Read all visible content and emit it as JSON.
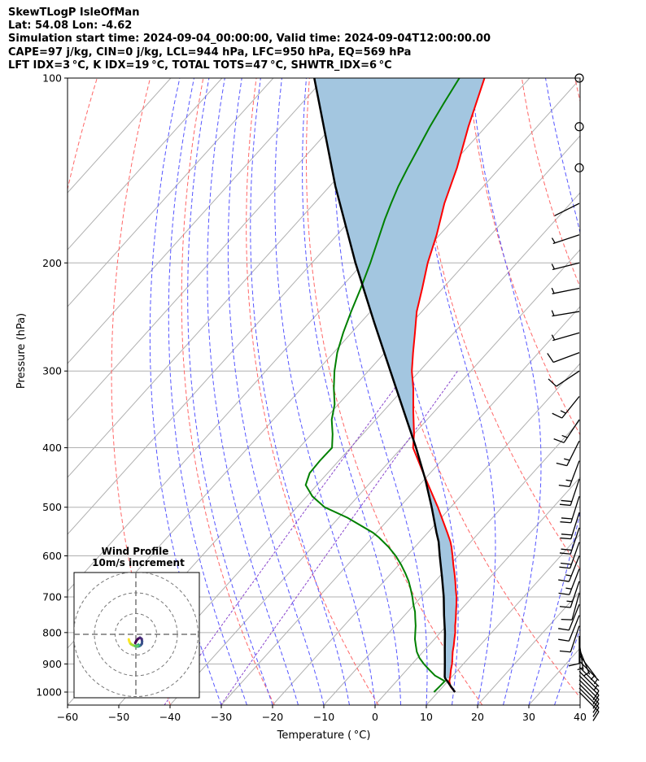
{
  "header": {
    "line1": "SkewTLogP IsleOfMan",
    "line2": "Lat: 54.08   Lon: -4.62",
    "line3": "Simulation start time: 2024-09-04_00:00:00, Valid time: 2024-09-04T12:00:00.00",
    "line4": "CAPE=97 j/kg, CIN=0 j/kg, LCL=944 hPa, LFC=950 hPa, EQ=569 hPa",
    "line5": "LFT IDX=3 °C, K IDX=19 °C, TOTAL TOTS=47 °C, SHWTR_IDX=6 °C"
  },
  "colors": {
    "temperature": "#ff0000",
    "dewpoint": "#008000",
    "parcel": "#000000",
    "cape_fill": "#a3c6e0",
    "dry_adiabat": "#ff6666",
    "moist_adiabat": "#5555ff",
    "isotherm": "#b0b0b0",
    "mixing_ratio": "#8844cc",
    "grid": "#b0b0b0"
  },
  "chart_data": {
    "type": "skewt",
    "xlabel": "Temperature ( °C)",
    "ylabel": "Pressure (hPa)",
    "xlim": [
      -60,
      40
    ],
    "ylim": [
      1050,
      100
    ],
    "log_pressure": true,
    "x_ticks": [
      -60,
      -50,
      -40,
      -30,
      -20,
      -10,
      0,
      10,
      20,
      30,
      40
    ],
    "y_ticks": [
      1000,
      900,
      800,
      700,
      600,
      500,
      400,
      300,
      200,
      100
    ],
    "grid": true,
    "temperature_profile": {
      "p": [
        1000,
        980,
        960,
        940,
        920,
        900,
        880,
        860,
        840,
        820,
        800,
        780,
        760,
        740,
        720,
        700,
        680,
        660,
        640,
        620,
        600,
        580,
        569,
        550,
        500,
        450,
        400,
        380,
        350,
        320,
        300,
        280,
        260,
        240,
        220,
        200,
        180,
        160,
        140,
        120,
        100
      ],
      "t": [
        13.3,
        11.5,
        10.3,
        9.5,
        8.6,
        7.8,
        6.8,
        5.8,
        4.9,
        3.9,
        2.9,
        1.7,
        0.6,
        -0.6,
        -1.8,
        -3.1,
        -4.6,
        -6.1,
        -7.7,
        -9.4,
        -11.1,
        -12.9,
        -14.0,
        -16.2,
        -22.5,
        -29.8,
        -37.8,
        -40.0,
        -44.0,
        -48.2,
        -51.5,
        -54.5,
        -57.6,
        -61.0,
        -64.0,
        -67.4,
        -70.6,
        -74.6,
        -78.4,
        -83.4,
        -88.8
      ]
    },
    "dewpoint_profile": {
      "p": [
        1000,
        980,
        960,
        950,
        940,
        920,
        900,
        880,
        860,
        840,
        820,
        800,
        780,
        760,
        740,
        720,
        700,
        680,
        660,
        640,
        620,
        600,
        580,
        560,
        550,
        520,
        500,
        480,
        460,
        440,
        420,
        400,
        380,
        360,
        340,
        320,
        300,
        280,
        260,
        240,
        220,
        200,
        180,
        170,
        160,
        150,
        140,
        130,
        120,
        110,
        100
      ],
      "td": [
        9.2,
        9.3,
        9.4,
        8.0,
        6.5,
        4.4,
        2.3,
        0.4,
        -1.2,
        -2.5,
        -3.8,
        -4.9,
        -6.0,
        -7.3,
        -8.6,
        -10.2,
        -11.7,
        -13.4,
        -15.2,
        -17.3,
        -19.6,
        -22.2,
        -25.2,
        -28.7,
        -30.7,
        -38.3,
        -44.6,
        -48.9,
        -52.2,
        -53.5,
        -53.7,
        -53.6,
        -55.9,
        -58.6,
        -60.7,
        -63.7,
        -66.6,
        -69.3,
        -71.6,
        -73.8,
        -76.0,
        -78.6,
        -81.7,
        -83.4,
        -85.0,
        -86.6,
        -88.0,
        -89.4,
        -90.9,
        -92.3,
        -93.7
      ]
    },
    "parcel_profile": {
      "p": [
        1000,
        980,
        960,
        950,
        944,
        900,
        850,
        800,
        750,
        700,
        650,
        600,
        569,
        550,
        500,
        450,
        400,
        350,
        300,
        250,
        200,
        150,
        100
      ],
      "t": [
        13.3,
        11.6,
        9.9,
        9.0,
        8.6,
        6.4,
        3.7,
        0.9,
        -2.3,
        -5.6,
        -9.4,
        -13.6,
        -16.3,
        -18.3,
        -23.7,
        -29.9,
        -37.2,
        -45.8,
        -55.7,
        -67.4,
        -81.5,
        -98.9,
        -122.0
      ]
    },
    "cape_region": {
      "p_bottom": 950,
      "p_top": 100
    },
    "isotherms_C": [
      -150,
      -140,
      -130,
      -120,
      -110,
      -100,
      -90,
      -80,
      -70,
      -60,
      -50,
      -40,
      -30,
      -20,
      -10,
      0,
      10,
      20,
      30,
      40
    ],
    "dry_adiabats_thetaK": [
      210,
      230,
      250,
      270,
      290,
      310,
      330,
      350,
      370,
      390,
      410,
      430,
      450,
      470
    ],
    "moist_adiabats_start_C": [
      -30,
      -25,
      -20,
      -15,
      -10,
      -5,
      0,
      5,
      10,
      15,
      20,
      25,
      30,
      35
    ],
    "mixing_ratio_gkg": [
      0.1,
      0.3
    ],
    "wind_barbs": {
      "p": [
        1000,
        985,
        970,
        955,
        940,
        925,
        910,
        890,
        870,
        850,
        830,
        810,
        780,
        750,
        720,
        690,
        660,
        630,
        600,
        570,
        540,
        510,
        480,
        450,
        420,
        390,
        360,
        330,
        300,
        280,
        260,
        240,
        220,
        200,
        180,
        160,
        140,
        120,
        100
      ],
      "u_kt": [
        -8,
        -8,
        -7,
        -6,
        -6,
        -6,
        -5,
        -4,
        -3,
        -2,
        -1,
        0,
        3,
        4,
        4,
        3,
        4,
        5,
        6,
        6,
        6,
        6,
        6,
        6,
        6,
        7,
        8,
        8,
        9,
        8,
        7,
        6,
        5,
        4,
        3,
        2,
        0,
        0,
        0
      ],
      "v_kt": [
        8,
        8,
        7,
        6,
        6,
        6,
        5,
        4,
        4,
        5,
        7,
        8,
        9,
        10,
        10,
        11,
        12,
        13,
        15,
        17,
        18,
        19,
        19,
        18,
        16,
        14,
        12,
        10,
        6,
        3,
        2,
        1,
        1,
        1,
        1,
        1,
        1,
        1,
        0
      ]
    },
    "hodograph": {
      "title_line1": "Wind Profile",
      "title_line2": "10m/s increment",
      "rings_ms": [
        10,
        20,
        30
      ],
      "u_ms": [
        -0.3,
        0.2,
        1.0,
        2.0,
        2.8,
        3.0,
        2.9,
        2.4,
        1.8,
        1.2,
        0.7,
        0.5,
        0.8,
        1.2,
        1.5,
        0.9,
        0.2,
        -0.5,
        -1.5,
        -2.4,
        -3.0,
        -3.3,
        -3.4
      ],
      "v_ms": [
        -4.2,
        -3.2,
        -2.2,
        -1.6,
        -2.2,
        -3.4,
        -4.5,
        -5.2,
        -5.6,
        -5.8,
        -5.9,
        -5.6,
        -5.3,
        -5.0,
        -5.3,
        -5.6,
        -5.9,
        -5.6,
        -5.2,
        -4.7,
        -3.8,
        -3.0,
        -2.4
      ]
    }
  }
}
